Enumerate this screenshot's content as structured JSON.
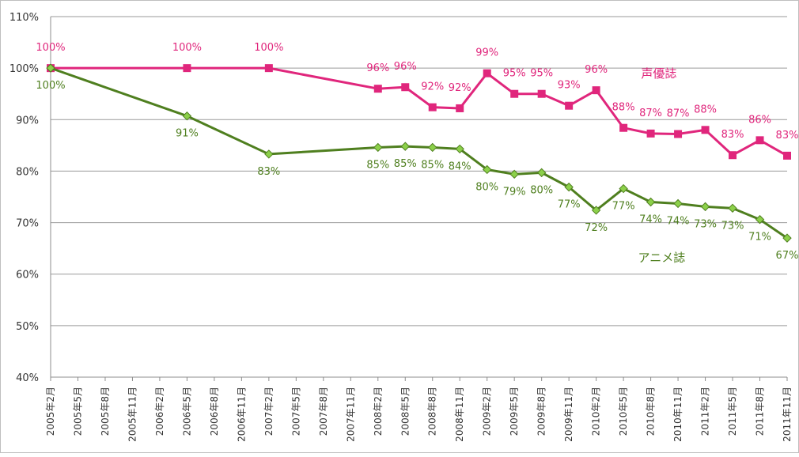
{
  "chart_data": {
    "type": "line",
    "categories": [
      "2005年2月",
      "2005年5月",
      "2005年8月",
      "2005年11月",
      "2006年2月",
      "2006年5月",
      "2006年8月",
      "2006年11月",
      "2007年2月",
      "2007年5月",
      "2007年8月",
      "2007年11月",
      "2008年2月",
      "2008年5月",
      "2008年8月",
      "2008年11月",
      "2009年2月",
      "2009年5月",
      "2009年8月",
      "2009年11月",
      "2010年2月",
      "2010年5月",
      "2010年8月",
      "2010年11月",
      "2011年2月",
      "2011年5月",
      "2011年8月",
      "2011年11月"
    ],
    "y_ticks": [
      "40%",
      "50%",
      "60%",
      "70%",
      "80%",
      "90%",
      "100%",
      "110%"
    ],
    "ylim": [
      40,
      110
    ],
    "grid": true,
    "series": [
      {
        "name": "声優誌",
        "color": "#e0267c",
        "marker": "square",
        "values": [
          100,
          null,
          null,
          null,
          null,
          100,
          null,
          null,
          100,
          null,
          null,
          null,
          96,
          96.3,
          92.4,
          92.2,
          99,
          95,
          95,
          92.7,
          95.7,
          88.4,
          87.3,
          87.2,
          88,
          83.1,
          86,
          83
        ],
        "labels": [
          "100%",
          null,
          null,
          null,
          null,
          "100%",
          null,
          null,
          "100%",
          null,
          null,
          null,
          "96%",
          "96%",
          "92%",
          "92%",
          "99%",
          "95%",
          "95%",
          "93%",
          "96%",
          "88%",
          "87%",
          "87%",
          "88%",
          "83%",
          "86%",
          "83%"
        ]
      },
      {
        "name": "アニメ誌",
        "color": "#4f7f1f",
        "marker_color": "#8cd04a",
        "marker": "diamond",
        "values": [
          100,
          null,
          null,
          null,
          null,
          90.7,
          null,
          null,
          83.3,
          null,
          null,
          null,
          84.6,
          84.8,
          84.6,
          84.3,
          80.3,
          79.4,
          79.7,
          76.9,
          72.4,
          76.6,
          74,
          73.7,
          73.1,
          72.8,
          70.6,
          67
        ],
        "labels": [
          "100%",
          null,
          null,
          null,
          null,
          "91%",
          null,
          null,
          "83%",
          null,
          null,
          null,
          "85%",
          "85%",
          "85%",
          "84%",
          "80%",
          "79%",
          "80%",
          "77%",
          "72%",
          "77%",
          "74%",
          "74%",
          "73%",
          "73%",
          "71%",
          "67%"
        ]
      }
    ]
  }
}
